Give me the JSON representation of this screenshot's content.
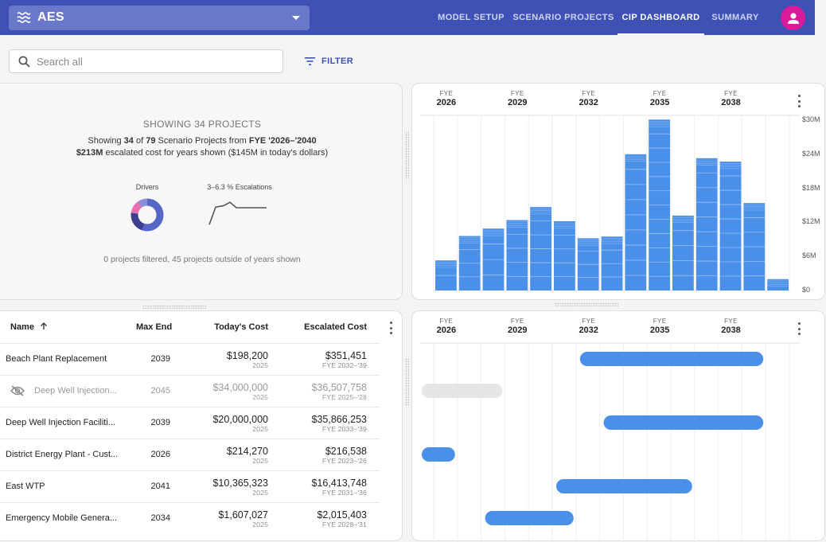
{
  "header": {
    "app_name": "AES",
    "tabs": [
      {
        "label": "MODEL SETUP"
      },
      {
        "label": "SCENARIO PROJECTS"
      },
      {
        "label": "CIP DASHBOARD"
      },
      {
        "label": "SUMMARY"
      }
    ],
    "active_tab": "CIP DASHBOARD"
  },
  "toolbar": {
    "search_placeholder": "Search all",
    "filter_label": "FILTER"
  },
  "summary": {
    "title": "SHOWING 34 PROJECTS",
    "line1_a": "Showing ",
    "line1_b": "34",
    "line1_c": " of ",
    "line1_d": "79",
    "line1_e": " Scenario Projects from ",
    "line1_f": "FYE '2026–'2040",
    "line2_a": "$213M",
    "line2_b": " escalated cost for years shown ($145M in today's dollars)",
    "drivers_label": "Drivers",
    "escalations_label": "3–6.3 % Escalations",
    "footer": "0 projects filtered, 45 projects outside of years shown",
    "drivers_donut": [
      {
        "name": "a",
        "value": 55,
        "color": "#5566c7"
      },
      {
        "name": "b",
        "value": 22,
        "color": "#3c3f8f"
      },
      {
        "name": "c",
        "value": 13,
        "color": "#e96fb0"
      },
      {
        "name": "d",
        "value": 10,
        "color": "#8a8fd8"
      }
    ],
    "escalation_series": [
      3.0,
      5.6,
      5.8,
      6.3,
      5.5,
      5.5,
      5.5,
      5.5
    ]
  },
  "chart_data": [
    {
      "type": "bar",
      "title": "",
      "categories": [
        "2026",
        "2027",
        "2028",
        "2029",
        "2030",
        "2031",
        "2032",
        "2033",
        "2034",
        "2035",
        "2036",
        "2037",
        "2038",
        "2039",
        "2040"
      ],
      "values": [
        5.3,
        9.6,
        10.9,
        12.4,
        14.7,
        12.2,
        9.2,
        9.5,
        24.0,
        30.1,
        13.2,
        23.3,
        22.7,
        15.4,
        2.0
      ],
      "ylim": [
        0,
        30
      ],
      "y_ticks": [
        "$30M",
        "$24M",
        "$18M",
        "$12M",
        "$6M",
        "$0"
      ],
      "x_ticks": [
        {
          "fye": "FYE",
          "year": "2026"
        },
        {
          "fye": "FYE",
          "year": "2029"
        },
        {
          "fye": "FYE",
          "year": "2032"
        },
        {
          "fye": "FYE",
          "year": "2035"
        },
        {
          "fye": "FYE",
          "year": "2038"
        }
      ],
      "color": "#4a8fe8"
    },
    {
      "type": "gantt",
      "x_ticks": [
        {
          "fye": "FYE",
          "year": "2026"
        },
        {
          "fye": "FYE",
          "year": "2029"
        },
        {
          "fye": "FYE",
          "year": "2032"
        },
        {
          "fye": "FYE",
          "year": "2035"
        },
        {
          "fye": "FYE",
          "year": "2038"
        }
      ],
      "bars": [
        {
          "start": 2032,
          "end": 2039,
          "hidden": false
        },
        {
          "start": 2025,
          "end": 2028,
          "hidden": true
        },
        {
          "start": 2033,
          "end": 2039,
          "hidden": false
        },
        {
          "start": 2023,
          "end": 2026,
          "hidden": false
        },
        {
          "start": 2031,
          "end": 2036,
          "hidden": false
        },
        {
          "start": 2028,
          "end": 2031,
          "hidden": false
        }
      ]
    }
  ],
  "table": {
    "columns": {
      "name": "Name",
      "max_end": "Max End",
      "todays_cost": "Today's Cost",
      "escalated_cost": "Escalated Cost"
    },
    "rows": [
      {
        "name": "Beach Plant Replacement",
        "max_end": "2039",
        "cost": "$198,200",
        "cost_year": "2025",
        "escalated": "$351,451",
        "range": "FYE 2032–'39",
        "hidden": false
      },
      {
        "name": "Deep Well Injection...",
        "max_end": "2045",
        "cost": "$34,000,000",
        "cost_year": "2025",
        "escalated": "$36,507,758",
        "range": "FYE 2025–'28",
        "hidden": true
      },
      {
        "name": "Deep Well Injection Faciliti...",
        "max_end": "2039",
        "cost": "$20,000,000",
        "cost_year": "2025",
        "escalated": "$35,866,253",
        "range": "FYE 2033–'39",
        "hidden": false
      },
      {
        "name": "District Energy Plant - Cust...",
        "max_end": "2026",
        "cost": "$214,270",
        "cost_year": "2025",
        "escalated": "$216,538",
        "range": "FYE 2023–'26",
        "hidden": false
      },
      {
        "name": "East WTP",
        "max_end": "2041",
        "cost": "$10,365,323",
        "cost_year": "2025",
        "escalated": "$16,413,748",
        "range": "FYE 2031–'36",
        "hidden": false
      },
      {
        "name": "Emergency Mobile Genera...",
        "max_end": "2034",
        "cost": "$1,607,027",
        "cost_year": "2025",
        "escalated": "$2,015,403",
        "range": "FYE 2028–'31",
        "hidden": false
      }
    ]
  }
}
